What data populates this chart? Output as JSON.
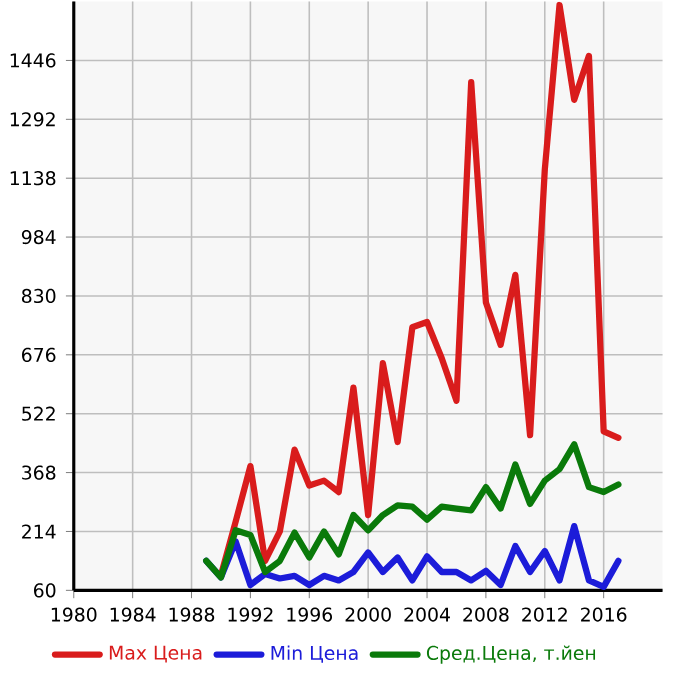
{
  "chart_data": {
    "type": "line",
    "x": [
      1989,
      1990,
      1991,
      1992,
      1993,
      1994,
      1995,
      1996,
      1997,
      1998,
      1999,
      2000,
      2001,
      2002,
      2003,
      2004,
      2005,
      2006,
      2007,
      2008,
      2009,
      2010,
      2011,
      2012,
      2013,
      2014,
      2015,
      2016,
      2017
    ],
    "series": [
      {
        "name": "Max Цена",
        "color": "#d91c1c",
        "values": [
          null,
          100,
          240,
          385,
          137,
          214,
          428,
          334,
          347,
          317,
          590,
          257,
          654,
          448,
          748,
          762,
          667,
          556,
          1389,
          813,
          702,
          885,
          466,
          1160,
          1591,
          1343,
          1458,
          476,
          459
        ]
      },
      {
        "name": "Min Цена",
        "color": "#1c1cd9",
        "values": [
          137,
          94,
          188,
          74,
          103,
          91,
          98,
          74,
          98,
          86,
          108,
          159,
          108,
          146,
          86,
          149,
          108,
          108,
          86,
          111,
          74,
          176,
          108,
          163,
          86,
          228,
          86,
          69,
          137
        ]
      },
      {
        "name": "Сред.Цена, т.йен",
        "color": "#0a7a0a",
        "values": [
          137,
          94,
          217,
          205,
          108,
          137,
          211,
          146,
          214,
          154,
          257,
          217,
          257,
          282,
          279,
          245,
          279,
          274,
          269,
          330,
          274,
          389,
          286,
          347,
          377,
          442,
          330,
          317,
          337
        ]
      }
    ],
    "xlim": [
      1980,
      2020
    ],
    "ylim": [
      60,
      1600
    ],
    "xticks": [
      1980,
      1984,
      1988,
      1992,
      1996,
      2000,
      2004,
      2008,
      2012,
      2016
    ],
    "yticks": [
      60,
      214,
      368,
      522,
      676,
      830,
      984,
      1138,
      1292,
      1446
    ],
    "grid": true,
    "legend": "bottom",
    "marker": "none",
    "line_style": "solid"
  }
}
